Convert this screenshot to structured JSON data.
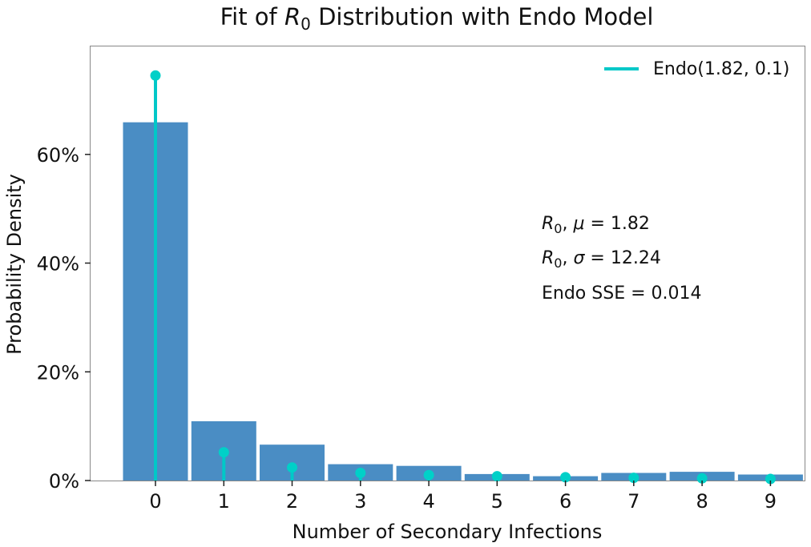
{
  "chart_data": {
    "type": "bar",
    "title_prefix": "Fit of ",
    "title_symbol": "R",
    "title_subscript": "0",
    "title_suffix": " Distribution with Endo Model",
    "xlabel": "Number of Secondary Infections",
    "ylabel": "Probability Density",
    "x_ticks": [
      "0",
      "1",
      "2",
      "3",
      "4",
      "5",
      "6",
      "7",
      "8",
      "9"
    ],
    "y_ticks": [
      {
        "value": 0,
        "label": "0%"
      },
      {
        "value": 0.2,
        "label": "20%"
      },
      {
        "value": 0.4,
        "label": "40%"
      },
      {
        "value": 0.6,
        "label": "60%"
      }
    ],
    "ylim": [
      0,
      0.8
    ],
    "xlim": [
      -0.95,
      9.5
    ],
    "grid": false,
    "bars": {
      "color": "#4a8dc4",
      "categories": [
        0,
        1,
        2,
        3,
        4,
        5,
        6,
        7,
        8,
        9
      ],
      "values": [
        0.659,
        0.109,
        0.066,
        0.03,
        0.027,
        0.012,
        0.008,
        0.014,
        0.016,
        0.011
      ]
    },
    "series": [
      {
        "name": "Endo(1.82, 0.1)",
        "type": "stem",
        "color": "#00c8c8",
        "marker_color": "#00d0c8",
        "x": [
          0,
          1,
          2,
          3,
          4,
          5,
          6,
          7,
          8,
          9
        ],
        "values": [
          0.745,
          0.052,
          0.024,
          0.014,
          0.01,
          0.008,
          0.006,
          0.005,
          0.004,
          0.003
        ]
      }
    ],
    "legend": {
      "position": "top-right",
      "label": "Endo(1.82, 0.1)"
    },
    "annotations": [
      {
        "symbol": "R",
        "subscript": "0",
        "greek": "μ",
        "text": " = 1.82"
      },
      {
        "symbol": "R",
        "subscript": "0",
        "greek": "σ",
        "text": " = 12.24"
      },
      {
        "plain": "Endo SSE = 0.014"
      }
    ],
    "frame_color": "#888888"
  }
}
